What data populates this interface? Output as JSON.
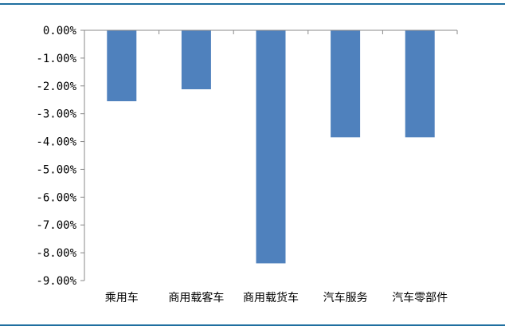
{
  "chart_data": {
    "type": "bar",
    "title": "",
    "xlabel": "",
    "ylabel": "",
    "categories": [
      "乘用车",
      "商用载客车",
      "商用载货车",
      "汽车服务",
      "汽车零部件"
    ],
    "values": [
      -2.55,
      -2.12,
      -8.38,
      -3.85,
      -3.85
    ],
    "ylim": [
      -9,
      0
    ],
    "yticks": [
      0,
      -1,
      -2,
      -3,
      -4,
      -5,
      -6,
      -7,
      -8,
      -9
    ],
    "ytick_labels": [
      "0.00%",
      "-1.00%",
      "-2.00%",
      "-3.00%",
      "-4.00%",
      "-5.00%",
      "-6.00%",
      "-7.00%",
      "-8.00%",
      "-9.00%"
    ],
    "bar_color": "#4f81bd",
    "grid": false,
    "legend": "none"
  }
}
